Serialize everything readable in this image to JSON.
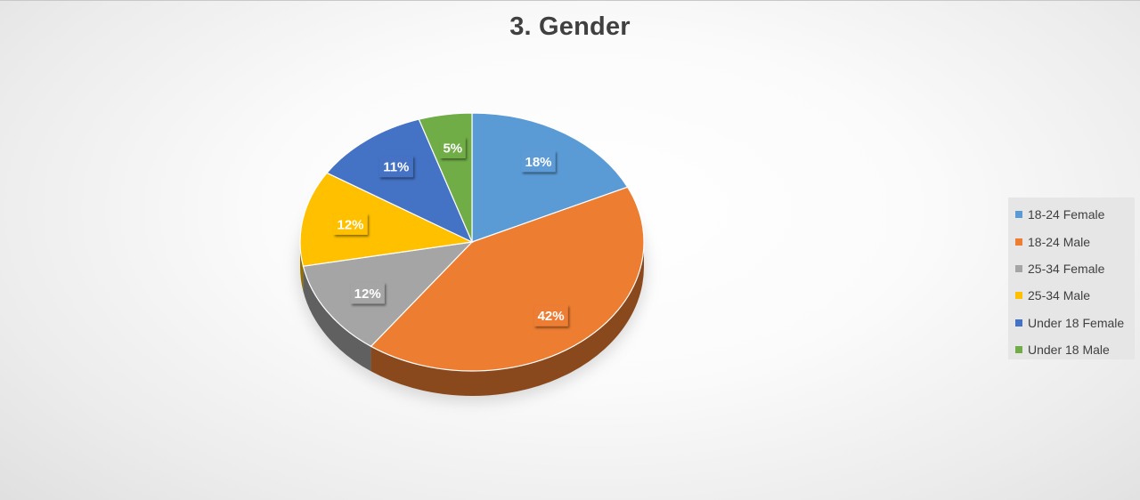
{
  "chart_data": {
    "type": "pie",
    "title": "3. Gender",
    "categories": [
      "18-24 Female",
      "18-24 Male",
      "25-34 Female",
      "25-34 Male",
      "Under 18 Female",
      "Under 18 Male"
    ],
    "values": [
      18,
      42,
      12,
      12,
      11,
      5
    ],
    "data_labels": [
      "18%",
      "42%",
      "12%",
      "12%",
      "11%",
      "5%"
    ],
    "colors": [
      "#5b9bd5",
      "#ed7d31",
      "#a5a5a5",
      "#ffc000",
      "#4472c4",
      "#70ad47"
    ],
    "legend_position": "right",
    "style": "3d"
  }
}
